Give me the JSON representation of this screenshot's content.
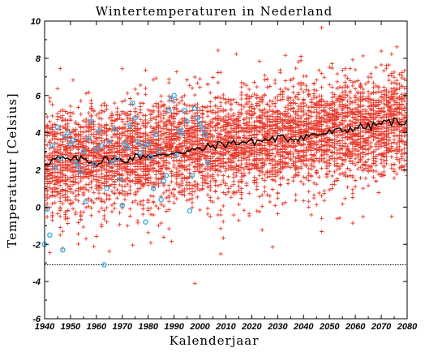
{
  "chart_data": {
    "type": "scatter",
    "title": "Wintertemperaturen in Nederland",
    "xlabel": "Kalenderjaar",
    "ylabel": "Temperatuur [Celsius]",
    "xlim": [
      1940,
      2080
    ],
    "ylim": [
      -6,
      10
    ],
    "xticks": [
      1940,
      1950,
      1960,
      1970,
      1980,
      1990,
      2000,
      2010,
      2020,
      2030,
      2040,
      2050,
      2060,
      2070,
      2080
    ],
    "yticks": [
      -6,
      -4,
      -2,
      0,
      2,
      4,
      6,
      8,
      10
    ],
    "grid": false,
    "legend": "none",
    "reference_line": {
      "y": -3.1,
      "style": "dotted"
    },
    "colors": {
      "ensemble": "#e8382a",
      "observed": "#3aaee6",
      "mean_line": "#000000"
    },
    "series": [
      {
        "kind": "ensemble-cloud",
        "x_range": [
          1940,
          2080
        ],
        "mean_start": 2.4,
        "mean_end": 4.6,
        "spread": 1.3
      },
      {
        "kind": "observed-points",
        "points": [
          [
            1940,
            -2.0
          ],
          [
            1941,
            -0.1
          ],
          [
            1942,
            -1.5
          ],
          [
            1943,
            3.3
          ],
          [
            1944,
            2.1
          ],
          [
            1945,
            4.3
          ],
          [
            1946,
            2.6
          ],
          [
            1947,
            -2.3
          ],
          [
            1948,
            3.8
          ],
          [
            1949,
            4.0
          ],
          [
            1950,
            3.4
          ],
          [
            1951,
            3.6
          ],
          [
            1952,
            2.4
          ],
          [
            1953,
            2.2
          ],
          [
            1954,
            1.9
          ],
          [
            1955,
            3.0
          ],
          [
            1956,
            0.3
          ],
          [
            1957,
            3.7
          ],
          [
            1958,
            4.6
          ],
          [
            1959,
            2.3
          ],
          [
            1960,
            3.1
          ],
          [
            1961,
            4.1
          ],
          [
            1962,
            3.3
          ],
          [
            1963,
            -3.1
          ],
          [
            1964,
            1.0
          ],
          [
            1965,
            3.5
          ],
          [
            1966,
            2.4
          ],
          [
            1967,
            4.2
          ],
          [
            1968,
            2.6
          ],
          [
            1969,
            1.5
          ],
          [
            1970,
            0.1
          ],
          [
            1971,
            3.4
          ],
          [
            1972,
            3.2
          ],
          [
            1973,
            4.4
          ],
          [
            1974,
            5.6
          ],
          [
            1975,
            4.8
          ],
          [
            1976,
            3.5
          ],
          [
            1977,
            2.9
          ],
          [
            1978,
            3.3
          ],
          [
            1979,
            -0.8
          ],
          [
            1980,
            3.4
          ],
          [
            1981,
            2.7
          ],
          [
            1982,
            1.0
          ],
          [
            1983,
            3.9
          ],
          [
            1984,
            3.0
          ],
          [
            1985,
            0.4
          ],
          [
            1986,
            1.4
          ],
          [
            1987,
            1.7
          ],
          [
            1988,
            5.2
          ],
          [
            1989,
            5.8
          ],
          [
            1990,
            6.0
          ],
          [
            1991,
            2.8
          ],
          [
            1992,
            4.1
          ],
          [
            1993,
            4.0
          ],
          [
            1994,
            5.2
          ],
          [
            1995,
            4.6
          ],
          [
            1996,
            -0.2
          ],
          [
            1997,
            1.7
          ],
          [
            1998,
            5.3
          ],
          [
            1999,
            4.8
          ],
          [
            2000,
            4.5
          ],
          [
            2001,
            4.2
          ],
          [
            2002,
            3.9
          ],
          [
            2003,
            2.4
          ]
        ]
      },
      {
        "kind": "ensemble-mean",
        "points": [
          [
            1940,
            2.4
          ],
          [
            1945,
            2.6
          ],
          [
            1950,
            2.5
          ],
          [
            1955,
            2.6
          ],
          [
            1960,
            2.4
          ],
          [
            1965,
            2.6
          ],
          [
            1970,
            2.5
          ],
          [
            1975,
            2.7
          ],
          [
            1980,
            2.8
          ],
          [
            1985,
            2.7
          ],
          [
            1990,
            3.0
          ],
          [
            1995,
            3.0
          ],
          [
            2000,
            3.1
          ],
          [
            2005,
            3.3
          ],
          [
            2010,
            3.4
          ],
          [
            2015,
            3.5
          ],
          [
            2020,
            3.5
          ],
          [
            2025,
            3.6
          ],
          [
            2030,
            3.7
          ],
          [
            2035,
            3.7
          ],
          [
            2040,
            3.8
          ],
          [
            2045,
            3.9
          ],
          [
            2050,
            4.0
          ],
          [
            2055,
            4.1
          ],
          [
            2060,
            4.3
          ],
          [
            2065,
            4.3
          ],
          [
            2070,
            4.5
          ],
          [
            2075,
            4.6
          ],
          [
            2080,
            4.6
          ]
        ]
      }
    ]
  }
}
